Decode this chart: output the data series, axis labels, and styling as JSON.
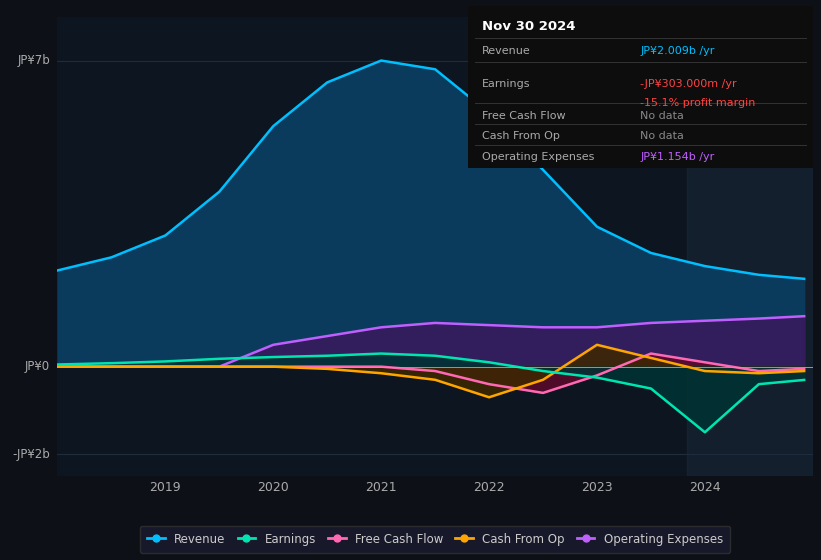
{
  "bg_color": "#0d1117",
  "plot_bg_color": "#0d1520",
  "grid_color": "#1e2d3d",
  "title": "Nov 30 2024",
  "tooltip": {
    "Revenue": {
      "value": "JP¥2.009b /yr",
      "color": "#00bfff"
    },
    "Earnings": {
      "value": "-JP¥303.000m /yr",
      "color": "#ff4444"
    },
    "Earnings_margin": {
      "value": "-15.1% profit margin",
      "color": "#ff4444"
    },
    "Free Cash Flow": {
      "value": "No data",
      "color": "#888888"
    },
    "Cash From Op": {
      "value": "No data",
      "color": "#888888"
    },
    "Operating Expenses": {
      "value": "JP¥1.154b /yr",
      "color": "#bf5fff"
    }
  },
  "ylabel_top": "JP¥7b",
  "ylabel_zero": "JP¥0",
  "ylabel_bottom": "-JP¥2b",
  "yticks": [
    7000000000,
    0,
    -2000000000
  ],
  "ylim": [
    -2500000000,
    8000000000
  ],
  "xlim_start": 2018.0,
  "xlim_end": 2025.0,
  "xticks": [
    2019,
    2020,
    2021,
    2022,
    2023,
    2024
  ],
  "legend": [
    {
      "label": "Revenue",
      "color": "#00bfff"
    },
    {
      "label": "Earnings",
      "color": "#00e5b0"
    },
    {
      "label": "Free Cash Flow",
      "color": "#ff69b4"
    },
    {
      "label": "Cash From Op",
      "color": "#ffa500"
    },
    {
      "label": "Operating Expenses",
      "color": "#bf5fff"
    }
  ],
  "shade_x_start": 2023.83,
  "shade_x_end": 2025.0,
  "revenue": {
    "x": [
      2018.0,
      2018.5,
      2019.0,
      2019.5,
      2020.0,
      2020.5,
      2021.0,
      2021.5,
      2022.0,
      2022.5,
      2023.0,
      2023.5,
      2024.0,
      2024.5,
      2024.92
    ],
    "y": [
      2200000000,
      2500000000,
      3000000000,
      4000000000,
      5500000000,
      6500000000,
      7000000000,
      6800000000,
      5800000000,
      4500000000,
      3200000000,
      2600000000,
      2300000000,
      2100000000,
      2009000000
    ],
    "color": "#00bfff",
    "fill_color": "#0a3a5c"
  },
  "earnings": {
    "x": [
      2018.0,
      2018.5,
      2019.0,
      2019.5,
      2020.0,
      2020.5,
      2021.0,
      2021.5,
      2022.0,
      2022.5,
      2023.0,
      2023.5,
      2024.0,
      2024.5,
      2024.92
    ],
    "y": [
      50000000,
      80000000,
      120000000,
      180000000,
      220000000,
      250000000,
      300000000,
      250000000,
      100000000,
      -100000000,
      -250000000,
      -500000000,
      -1500000000,
      -400000000,
      -303000000
    ],
    "color": "#00e5b0",
    "fill_color": "#003333"
  },
  "free_cash_flow": {
    "x": [
      2018.0,
      2019.5,
      2020.0,
      2020.5,
      2021.0,
      2021.5,
      2022.0,
      2022.5,
      2023.0,
      2023.5,
      2024.0,
      2024.5,
      2024.92
    ],
    "y": [
      0,
      0,
      0,
      0,
      0,
      -100000000,
      -400000000,
      -600000000,
      -200000000,
      300000000,
      100000000,
      -100000000,
      -50000000
    ],
    "color": "#ff69b4",
    "fill_color": "#5c0a2a"
  },
  "cash_from_op": {
    "x": [
      2018.0,
      2019.5,
      2020.0,
      2020.5,
      2021.0,
      2021.5,
      2022.0,
      2022.5,
      2023.0,
      2023.5,
      2024.0,
      2024.5,
      2024.92
    ],
    "y": [
      0,
      0,
      0,
      -50000000,
      -150000000,
      -300000000,
      -700000000,
      -300000000,
      500000000,
      200000000,
      -100000000,
      -150000000,
      -100000000
    ],
    "color": "#ffa500",
    "fill_color": "#3d2800"
  },
  "op_expenses": {
    "x": [
      2018.0,
      2019.5,
      2020.0,
      2020.5,
      2021.0,
      2021.5,
      2022.0,
      2022.5,
      2023.0,
      2023.5,
      2024.0,
      2024.5,
      2024.92
    ],
    "y": [
      0,
      0,
      500000000,
      700000000,
      900000000,
      1000000000,
      950000000,
      900000000,
      900000000,
      1000000000,
      1050000000,
      1100000000,
      1154000000
    ],
    "color": "#bf5fff",
    "fill_color": "#3a1a5c"
  }
}
